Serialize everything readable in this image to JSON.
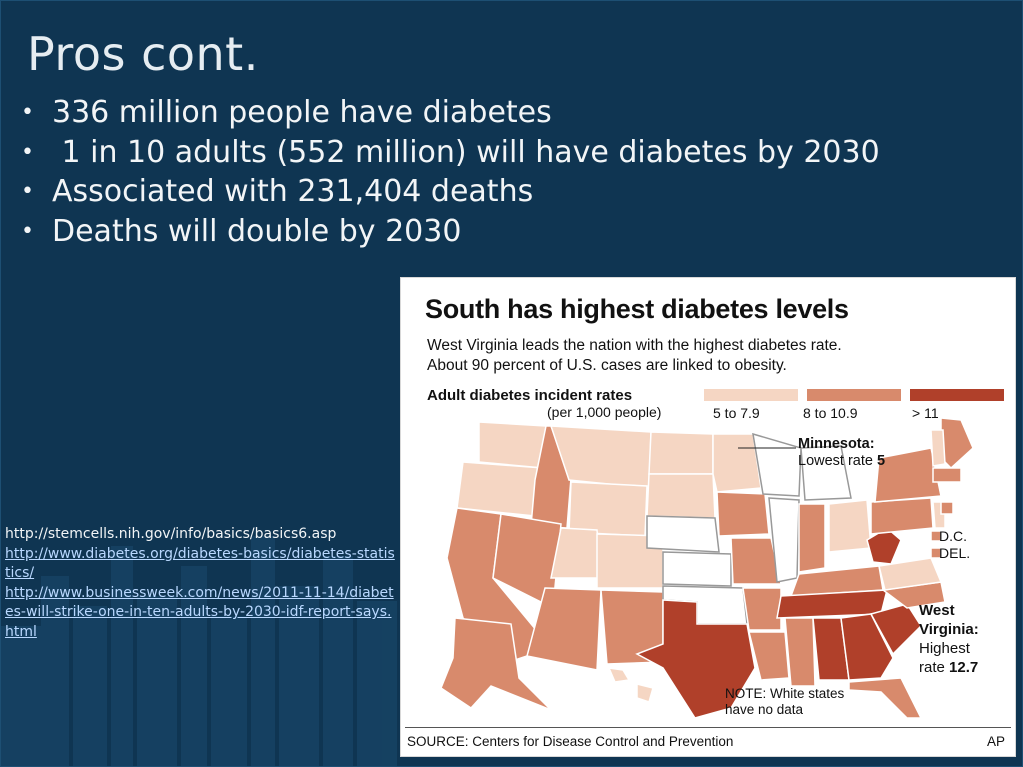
{
  "slide": {
    "title": "Pros cont.",
    "bullets": [
      "336 million people have diabetes",
      " 1 in 10 adults (552 million) will have diabetes by 2030",
      "Associated with 231,404 deaths",
      "Deaths will double by 2030"
    ],
    "bullet_glyph": "•",
    "references": [
      "http://stemcells.nih.gov/info/basics/basics6.asp",
      "http://www.diabetes.org/diabetes-basics/diabetes-statistics/",
      "http://www.businessweek.com/news/2011-11-14/diabetes-will-strike-one-in-ten-adults-by-2030-idf-report-says.html"
    ]
  },
  "figure": {
    "title": "South has highest diabetes levels",
    "subtitle_line1": "West Virginia leads the nation with the highest diabetes rate.",
    "subtitle_line2": "About 90 percent of U.S. cases are linked to obesity.",
    "legend_title": "Adult diabetes incident rates",
    "legend_sub": "(per 1,000 people)",
    "legend": [
      {
        "label": "5 to 7.9",
        "color": "#f5d6c3"
      },
      {
        "label": "8 to 10.9",
        "color": "#d88a6c"
      },
      {
        "label": "> 11",
        "color": "#b0402a"
      }
    ],
    "minnesota_title": "Minnesota:",
    "minnesota_text": "Lowest rate",
    "minnesota_value": "5",
    "dc_label": "D.C.",
    "del_label": "DEL.",
    "wv_line1": "West",
    "wv_line2": "Virginia:",
    "wv_line3": "Highest",
    "wv_line4": "rate",
    "wv_value": "12.7",
    "note_line1": "NOTE: White states",
    "note_line2": "have no data",
    "source": "SOURCE: Centers for Disease Control and Prevention",
    "credit": "AP"
  }
}
